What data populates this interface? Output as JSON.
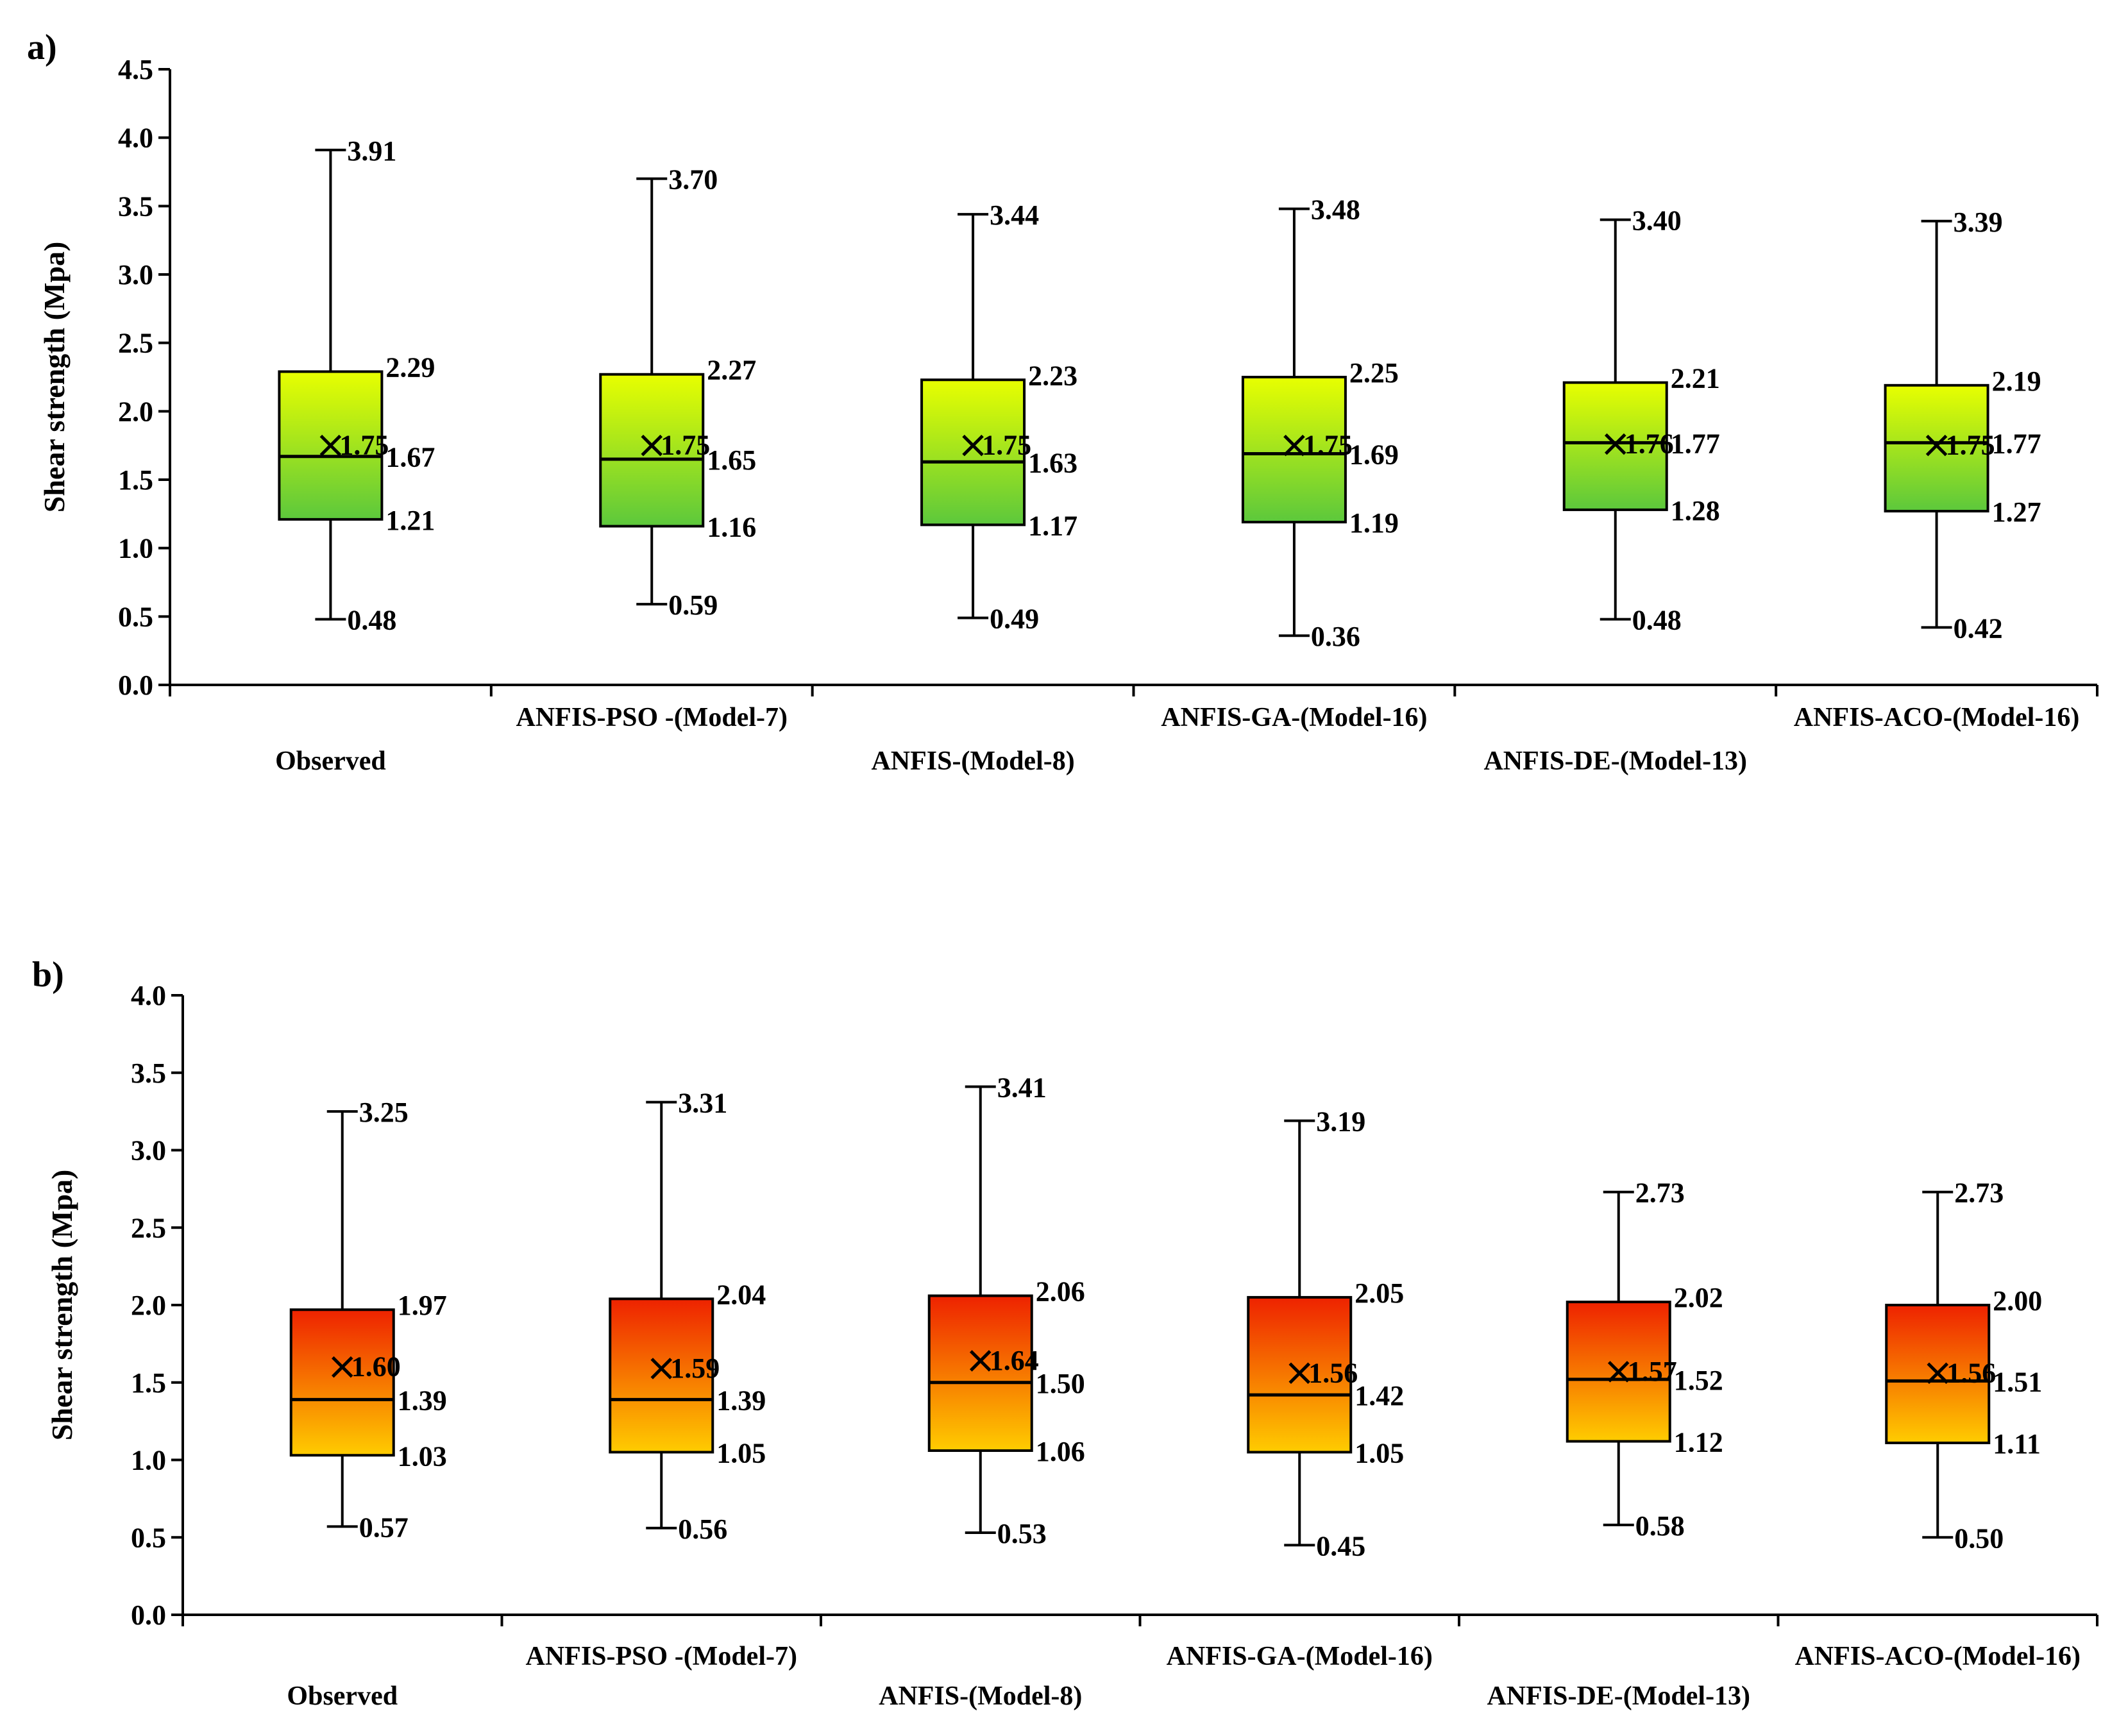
{
  "chart_data": [
    {
      "type": "box",
      "panel_label": "a)",
      "ylabel": "Shear strength (Mpa)",
      "ylim": [
        0.0,
        4.5
      ],
      "yticks": [
        "0.0",
        "0.5",
        "1.0",
        "1.5",
        "2.0",
        "2.5",
        "3.0",
        "3.5",
        "4.0",
        "4.5"
      ],
      "categories": [
        "Observed",
        "ANFIS-PSO -(Model-7)",
        "ANFIS-(Model-8)",
        "ANFIS-GA-(Model-16)",
        "ANFIS-DE-(Model-13)",
        "ANFIS-ACO-(Model-16)"
      ],
      "fill_colors": [
        "#e8ff00",
        "#5cc83c"
      ],
      "boxes": [
        {
          "min": 0.48,
          "q1": 1.21,
          "median": 1.67,
          "q3": 2.29,
          "max": 3.91,
          "mean": 1.75,
          "labels": {
            "min": "0.48",
            "q1": "1.21",
            "median": "1.67",
            "q3": "2.29",
            "max": "3.91",
            "mean": "1.75"
          }
        },
        {
          "min": 0.59,
          "q1": 1.16,
          "median": 1.65,
          "q3": 2.27,
          "max": 3.7,
          "mean": 1.75,
          "labels": {
            "min": "0.59",
            "q1": "1.16",
            "median": "1.65",
            "q3": "2.27",
            "max": "3.70",
            "mean": "1.75"
          }
        },
        {
          "min": 0.49,
          "q1": 1.17,
          "median": 1.63,
          "q3": 2.23,
          "max": 3.44,
          "mean": 1.75,
          "labels": {
            "min": "0.49",
            "q1": "1.17",
            "median": "1.63",
            "q3": "2.23",
            "max": "3.44",
            "mean": "1.75"
          }
        },
        {
          "min": 0.36,
          "q1": 1.19,
          "median": 1.69,
          "q3": 2.25,
          "max": 3.48,
          "mean": 1.75,
          "labels": {
            "min": "0.36",
            "q1": "1.19",
            "median": "1.69",
            "q3": "2.25",
            "max": "3.48",
            "mean": "1.75"
          }
        },
        {
          "min": 0.48,
          "q1": 1.28,
          "median": 1.77,
          "q3": 2.21,
          "max": 3.4,
          "mean": 1.76,
          "labels": {
            "min": "0.48",
            "q1": "1.28",
            "median": "1.77",
            "q3": "2.21",
            "max": "3.40",
            "mean": "1.76"
          }
        },
        {
          "min": 0.42,
          "q1": 1.27,
          "median": 1.77,
          "q3": 2.19,
          "max": 3.39,
          "mean": 1.75,
          "labels": {
            "min": "0.42",
            "q1": "1.27",
            "median": "1.77",
            "q3": "2.19",
            "max": "3.39",
            "mean": "1.75"
          }
        }
      ]
    },
    {
      "type": "box",
      "panel_label": "b)",
      "ylabel": "Shear strength (Mpa)",
      "ylim": [
        0.0,
        4.0
      ],
      "yticks": [
        "0.0",
        "0.5",
        "1.0",
        "1.5",
        "2.0",
        "2.5",
        "3.0",
        "3.5",
        "4.0"
      ],
      "categories": [
        "Observed",
        "ANFIS-PSO -(Model-7)",
        "ANFIS-(Model-8)",
        "ANFIS-GA-(Model-16)",
        "ANFIS-DE-(Model-13)",
        "ANFIS-ACO-(Model-16)"
      ],
      "fill_colors": [
        "#ee2200",
        "#ffcc00"
      ],
      "boxes": [
        {
          "min": 0.57,
          "q1": 1.03,
          "median": 1.39,
          "q3": 1.97,
          "max": 3.25,
          "mean": 1.6,
          "labels": {
            "min": "0.57",
            "q1": "1.03",
            "median": "1.39",
            "q3": "1.97",
            "max": "3.25",
            "mean": "1.60"
          }
        },
        {
          "min": 0.56,
          "q1": 1.05,
          "median": 1.39,
          "q3": 2.04,
          "max": 3.31,
          "mean": 1.59,
          "labels": {
            "min": "0.56",
            "q1": "1.05",
            "median": "1.39",
            "q3": "2.04",
            "max": "3.31",
            "mean": "1.59"
          }
        },
        {
          "min": 0.53,
          "q1": 1.06,
          "median": 1.5,
          "q3": 2.06,
          "max": 3.41,
          "mean": 1.64,
          "labels": {
            "min": "0.53",
            "q1": "1.06",
            "median": "1.50",
            "q3": "2.06",
            "max": "3.41",
            "mean": "1.64"
          }
        },
        {
          "min": 0.45,
          "q1": 1.05,
          "median": 1.42,
          "q3": 2.05,
          "max": 3.19,
          "mean": 1.56,
          "labels": {
            "min": "0.45",
            "q1": "1.05",
            "median": "1.42",
            "q3": "2.05",
            "max": "3.19",
            "mean": "1.56"
          }
        },
        {
          "min": 0.58,
          "q1": 1.12,
          "median": 1.52,
          "q3": 2.02,
          "max": 2.73,
          "mean": 1.57,
          "labels": {
            "min": "0.58",
            "q1": "1.12",
            "median": "1.52",
            "q3": "2.02",
            "max": "2.73",
            "mean": "1.57"
          }
        },
        {
          "min": 0.5,
          "q1": 1.11,
          "median": 1.51,
          "q3": 2.0,
          "max": 2.73,
          "mean": 1.56,
          "labels": {
            "min": "0.50",
            "q1": "1.11",
            "median": "1.51",
            "q3": "2.00",
            "max": "2.73",
            "mean": "1.56"
          }
        }
      ]
    }
  ]
}
